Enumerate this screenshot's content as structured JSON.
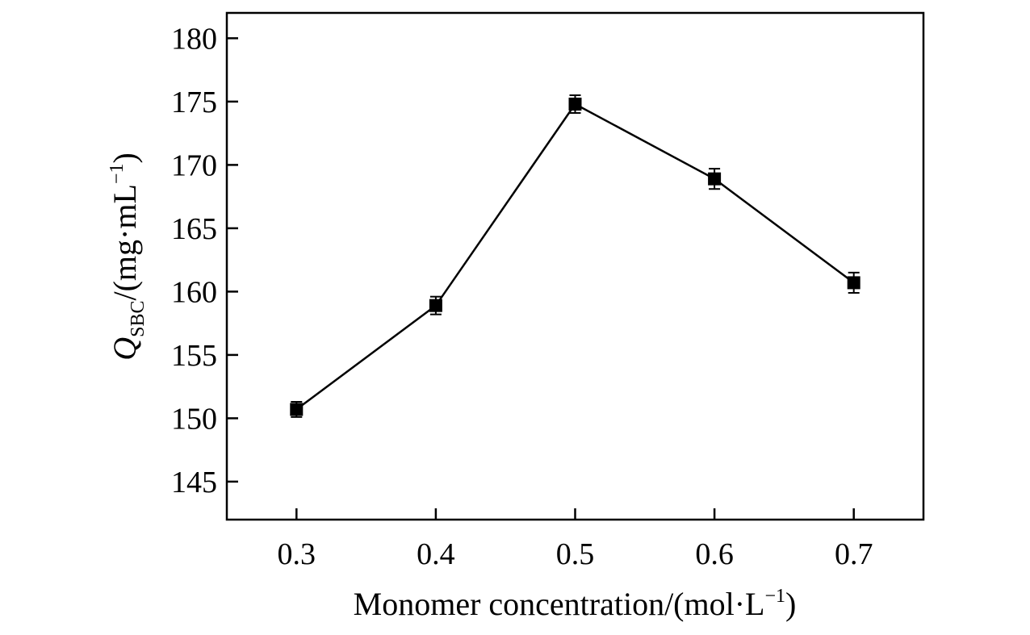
{
  "chart_data": {
    "type": "line",
    "x": [
      0.3,
      0.4,
      0.5,
      0.6,
      0.7
    ],
    "series": [
      {
        "values": [
          150.7,
          158.9,
          174.8,
          168.9,
          160.7
        ],
        "errors": [
          0.6,
          0.7,
          0.7,
          0.8,
          0.8
        ],
        "marker": "square",
        "color": "#000000"
      }
    ],
    "xticks": [
      "0.3",
      "0.4",
      "0.5",
      "0.6",
      "0.7"
    ],
    "yticks": [
      "145",
      "150",
      "155",
      "160",
      "165",
      "170",
      "175",
      "180"
    ],
    "xlim": [
      0.25,
      0.75
    ],
    "ylim": [
      142,
      182
    ],
    "xlabel": {
      "main": "Monomer concentration/(mol·L",
      "sup": "−1",
      "close": ")"
    },
    "ylabel": {
      "symbol": "Q",
      "sub": "SBC",
      "unit": "/(mg·mL",
      "sup": "−1",
      "close": ")"
    },
    "grid": false,
    "legend": "none"
  }
}
